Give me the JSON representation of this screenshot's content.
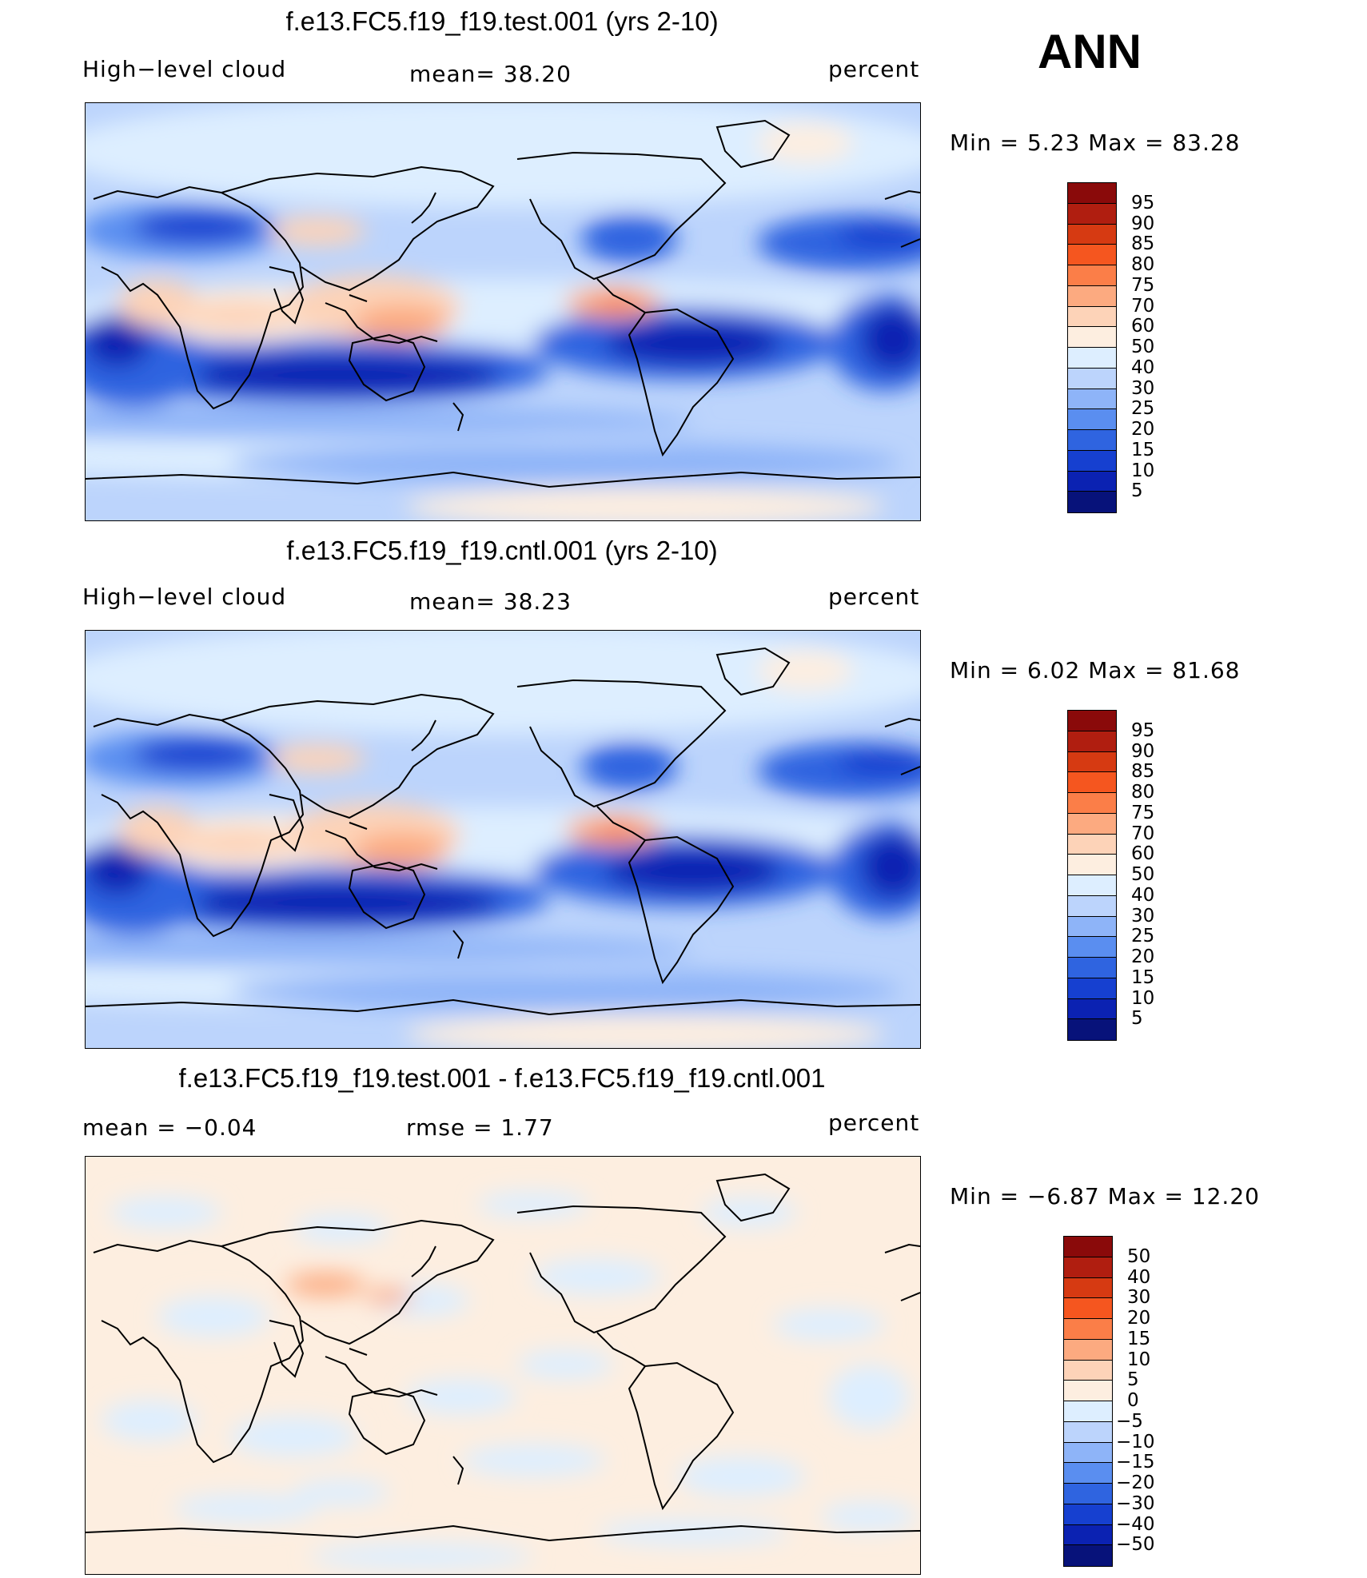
{
  "season": "ANN",
  "panels": [
    {
      "title": "f.e13.FC5.f19_f19.test.001 (yrs 2-10)",
      "left_label": "High−level cloud",
      "mid_label": "mean=   38.20",
      "units": "percent",
      "min_max": "Min =    5.23 Max =   83.28",
      "colorbar_levels": [
        "95",
        "90",
        "85",
        "80",
        "75",
        "70",
        "60",
        "50",
        "40",
        "30",
        "25",
        "20",
        "15",
        "10",
        "5"
      ],
      "colors": [
        "#8a0a0a",
        "#b01e10",
        "#d63a12",
        "#f5561f",
        "#fb7e48",
        "#fcaa80",
        "#fdd3b8",
        "#fdeee0",
        "#ddeeff",
        "#bcd4fc",
        "#8eb4f8",
        "#5a8ef0",
        "#2f64e0",
        "#1640d0",
        "#0b22b2",
        "#07127a"
      ]
    },
    {
      "title": "f.e13.FC5.f19_f19.cntl.001 (yrs 2-10)",
      "left_label": "High−level cloud",
      "mid_label": "mean=   38.23",
      "units": "percent",
      "min_max": "Min =    6.02 Max =   81.68",
      "colorbar_levels": [
        "95",
        "90",
        "85",
        "80",
        "75",
        "70",
        "60",
        "50",
        "40",
        "30",
        "25",
        "20",
        "15",
        "10",
        "5"
      ],
      "colors": [
        "#8a0a0a",
        "#b01e10",
        "#d63a12",
        "#f5561f",
        "#fb7e48",
        "#fcaa80",
        "#fdd3b8",
        "#fdeee0",
        "#ddeeff",
        "#bcd4fc",
        "#8eb4f8",
        "#5a8ef0",
        "#2f64e0",
        "#1640d0",
        "#0b22b2",
        "#07127a"
      ]
    },
    {
      "title": "f.e13.FC5.f19_f19.test.001 - f.e13.FC5.f19_f19.cntl.001",
      "left_label": "mean =   −0.04",
      "mid_label": "rmse =    1.77",
      "units": "percent",
      "min_max": "Min =  −6.87 Max =   12.20",
      "colorbar_levels": [
        "50",
        "40",
        "30",
        "20",
        "15",
        "10",
        "5",
        "0",
        "−5",
        "−10",
        "−15",
        "−20",
        "−30",
        "−40",
        "−50"
      ],
      "colors": [
        "#8a0a0a",
        "#b01e10",
        "#d63a12",
        "#f5561f",
        "#fb7e48",
        "#fcaa80",
        "#fdd3b8",
        "#fdeee0",
        "#ddeeff",
        "#bcd4fc",
        "#8eb4f8",
        "#5a8ef0",
        "#2f64e0",
        "#1640d0",
        "#0b22b2",
        "#07127a"
      ]
    }
  ],
  "chart_data": [
    {
      "type": "heatmap",
      "title": "f.e13.FC5.f19_f19.test.001 (yrs 2-10)",
      "variable": "High−level cloud",
      "units": "percent",
      "mean": 38.2,
      "min": 5.23,
      "max": 83.28,
      "contour_levels": [
        5,
        10,
        15,
        20,
        25,
        30,
        40,
        50,
        60,
        70,
        75,
        80,
        85,
        90,
        95
      ]
    },
    {
      "type": "heatmap",
      "title": "f.e13.FC5.f19_f19.cntl.001 (yrs 2-10)",
      "variable": "High−level cloud",
      "units": "percent",
      "mean": 38.23,
      "min": 6.02,
      "max": 81.68,
      "contour_levels": [
        5,
        10,
        15,
        20,
        25,
        30,
        40,
        50,
        60,
        70,
        75,
        80,
        85,
        90,
        95
      ]
    },
    {
      "type": "heatmap",
      "title": "f.e13.FC5.f19_f19.test.001 - f.e13.FC5.f19_f19.cntl.001",
      "units": "percent",
      "mean": -0.04,
      "rmse": 1.77,
      "min": -6.87,
      "max": 12.2,
      "contour_levels": [
        -50,
        -40,
        -30,
        -20,
        -15,
        -10,
        -5,
        0,
        5,
        10,
        15,
        20,
        30,
        40,
        50
      ]
    }
  ]
}
